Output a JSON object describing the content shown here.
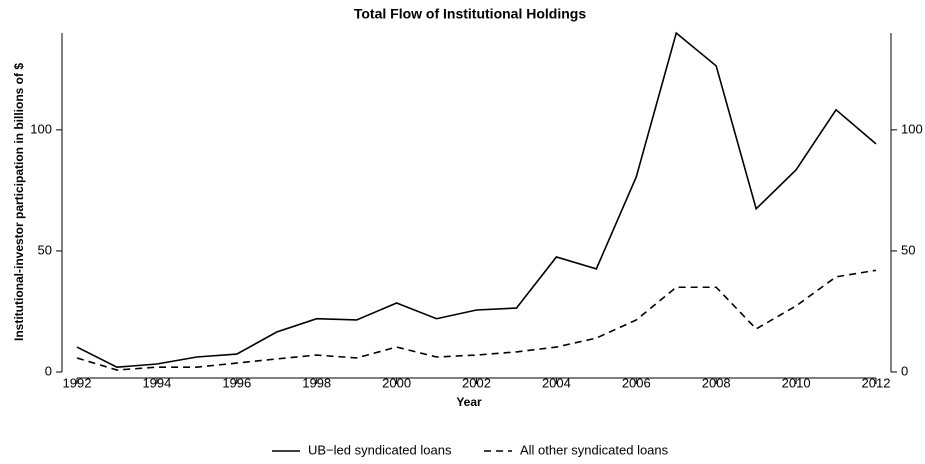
{
  "chart_data": {
    "type": "line",
    "title": "Total Flow of Institutional Holdings",
    "x_label": "Year",
    "y_label": "Institutional-investor participation in billions of $",
    "x": [
      1992,
      1993,
      1994,
      1995,
      1996,
      1997,
      1998,
      1999,
      2000,
      2001,
      2002,
      2003,
      2004,
      2005,
      2006,
      2007,
      2008,
      2009,
      2010,
      2011,
      2012
    ],
    "xlim": [
      1992,
      2012
    ],
    "xticks": [
      1992,
      1994,
      1996,
      1998,
      2000,
      2002,
      2004,
      2006,
      2008,
      2010,
      2012
    ],
    "ylim": [
      0,
      140
    ],
    "yticks": [
      0,
      50,
      100
    ],
    "y2lim": [
      0,
      140
    ],
    "y2ticks": [
      0,
      50,
      100
    ],
    "series": [
      {
        "name": "UB−led syndicated loans",
        "color": "#000000",
        "style": "solid",
        "values": [
          10.3,
          2,
          3.3,
          6.2,
          7.4,
          16.5,
          22,
          21.5,
          28.5,
          22,
          25.6,
          26.4,
          47.5,
          42.6,
          80.6,
          140,
          126.4,
          67.4,
          83.5,
          108.3,
          94.2
        ]
      },
      {
        "name": "All other syndicated loans",
        "color": "#000000",
        "style": "dashed",
        "values": [
          5.8,
          0.8,
          2,
          2,
          3.7,
          5.4,
          7,
          5.8,
          10.3,
          6.2,
          7,
          8.3,
          10.3,
          14,
          21.5,
          35,
          35,
          17.8,
          27.3,
          39.3,
          42
        ]
      }
    ]
  }
}
